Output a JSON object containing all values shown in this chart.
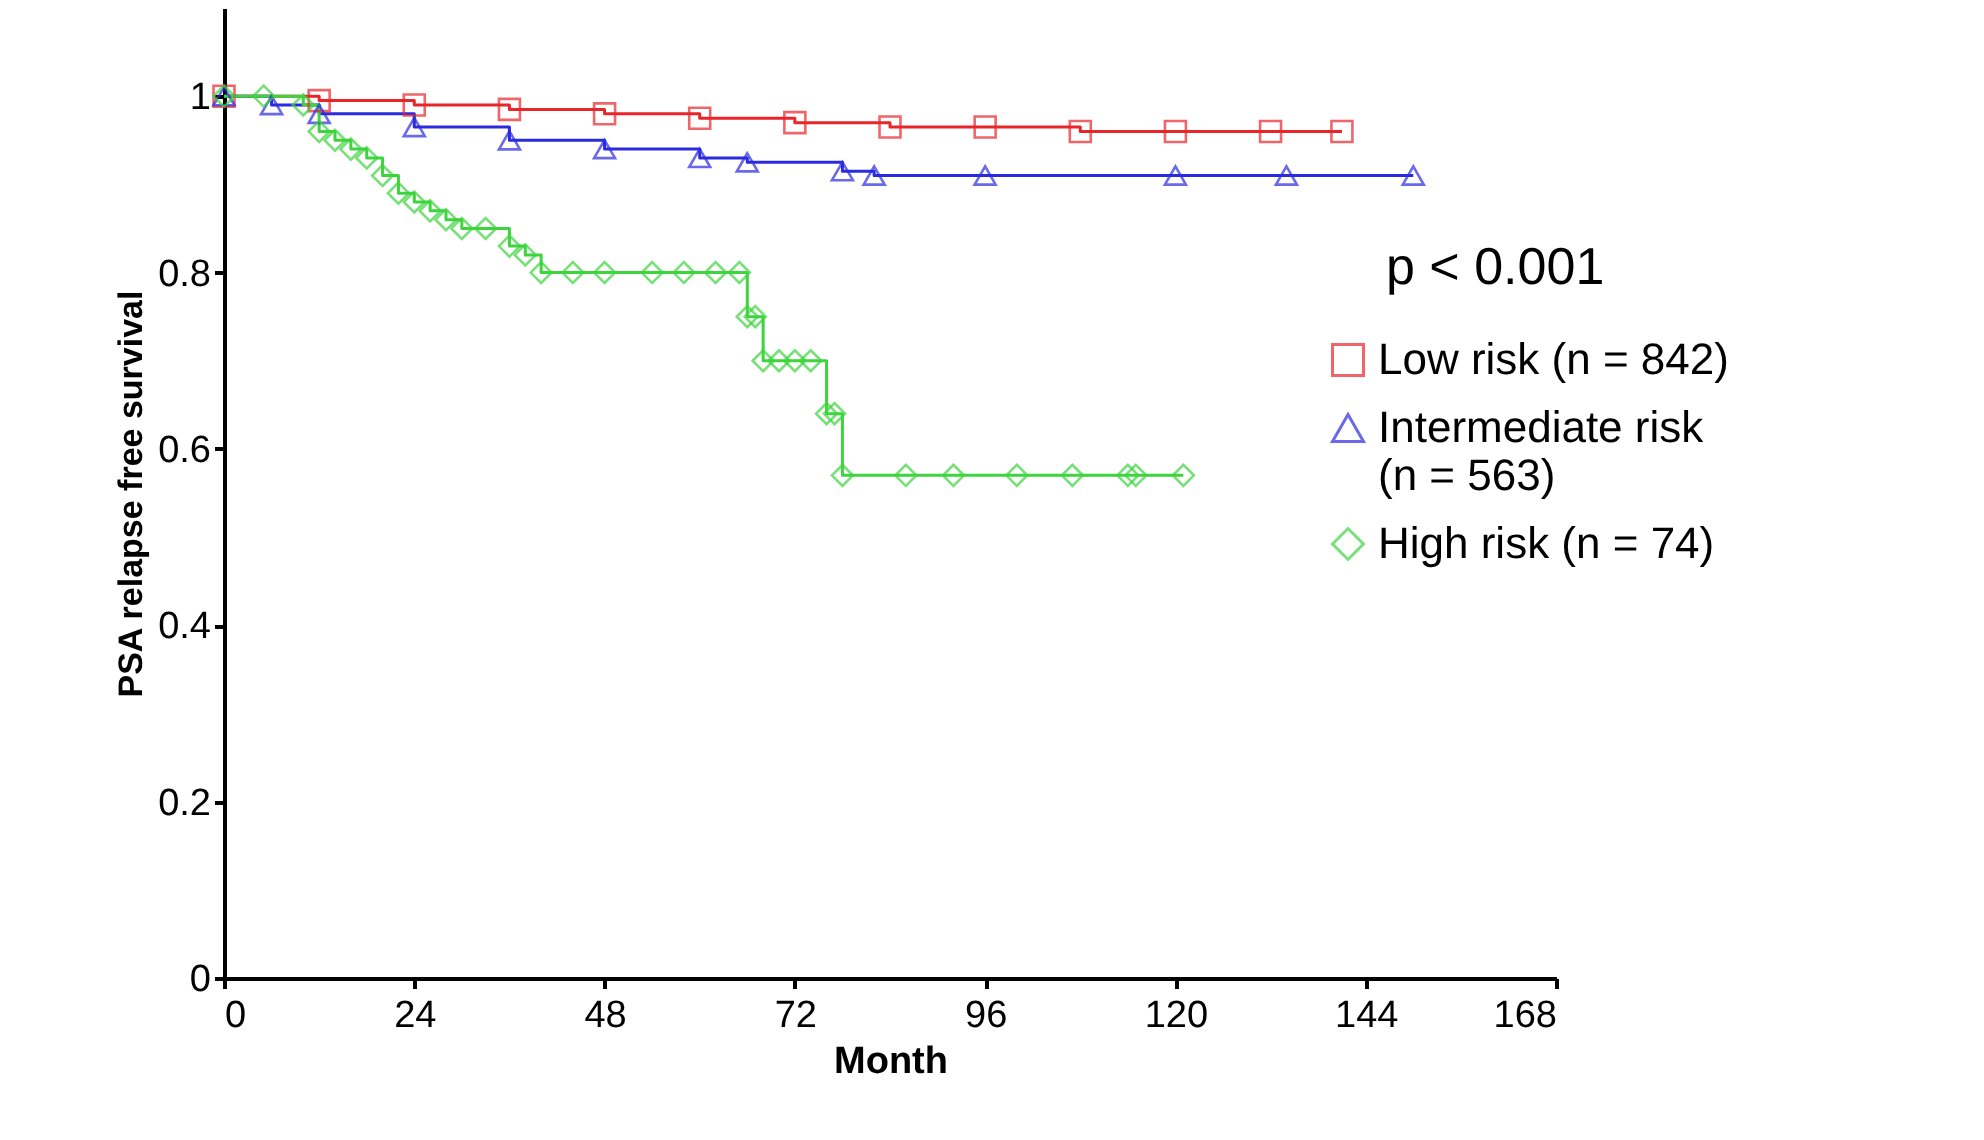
{
  "chart_data": {
    "type": "step",
    "xlabel": "Month",
    "ylabel": "PSA relapse free survival",
    "xlim": [
      0,
      168
    ],
    "xticks": [
      0,
      24,
      48,
      72,
      96,
      120,
      144,
      168
    ],
    "ylim": [
      0,
      1.1
    ],
    "yticks": [
      0,
      0.2,
      0.4,
      0.6,
      0.8,
      1
    ],
    "grid": false,
    "legend": "right",
    "line_style": "solid",
    "annotations": [
      "p < 0.001"
    ],
    "series": [
      {
        "name": "Low risk (n = 842)",
        "color": "#e8262a",
        "marker": "square",
        "x": [
          0,
          12,
          24,
          36,
          48,
          60,
          72,
          84,
          96,
          108,
          120,
          132,
          141
        ],
        "values": [
          1,
          0.995,
          0.99,
          0.985,
          0.98,
          0.975,
          0.97,
          0.965,
          0.965,
          0.96,
          0.96,
          0.96,
          0.96
        ]
      },
      {
        "name": "Intermediate risk\n(n = 563)",
        "color": "#2a2ae0",
        "marker": "triangle",
        "x": [
          0,
          6,
          12,
          24,
          36,
          48,
          60,
          66,
          78,
          82,
          96,
          120,
          134,
          150
        ],
        "values": [
          1,
          0.99,
          0.98,
          0.965,
          0.95,
          0.94,
          0.93,
          0.925,
          0.915,
          0.91,
          0.91,
          0.91,
          0.91,
          0.91
        ]
      },
      {
        "name": "High risk (n = 74)",
        "color": "#3ed43e",
        "marker": "diamond",
        "x": [
          0,
          5,
          10,
          12,
          14,
          16,
          18,
          20,
          22,
          24,
          26,
          28,
          30,
          33,
          36,
          38,
          40,
          44,
          48,
          54,
          58,
          62,
          65,
          66,
          67,
          68,
          70,
          72,
          74,
          76,
          77,
          78,
          86,
          92,
          100,
          107,
          114,
          115,
          121
        ],
        "values": [
          1,
          1,
          0.99,
          0.96,
          0.95,
          0.94,
          0.93,
          0.91,
          0.89,
          0.88,
          0.87,
          0.86,
          0.85,
          0.85,
          0.83,
          0.82,
          0.8,
          0.8,
          0.8,
          0.8,
          0.8,
          0.8,
          0.8,
          0.75,
          0.75,
          0.7,
          0.7,
          0.7,
          0.7,
          0.64,
          0.64,
          0.57,
          0.57,
          0.57,
          0.57,
          0.57,
          0.57,
          0.57,
          0.57
        ]
      }
    ]
  }
}
